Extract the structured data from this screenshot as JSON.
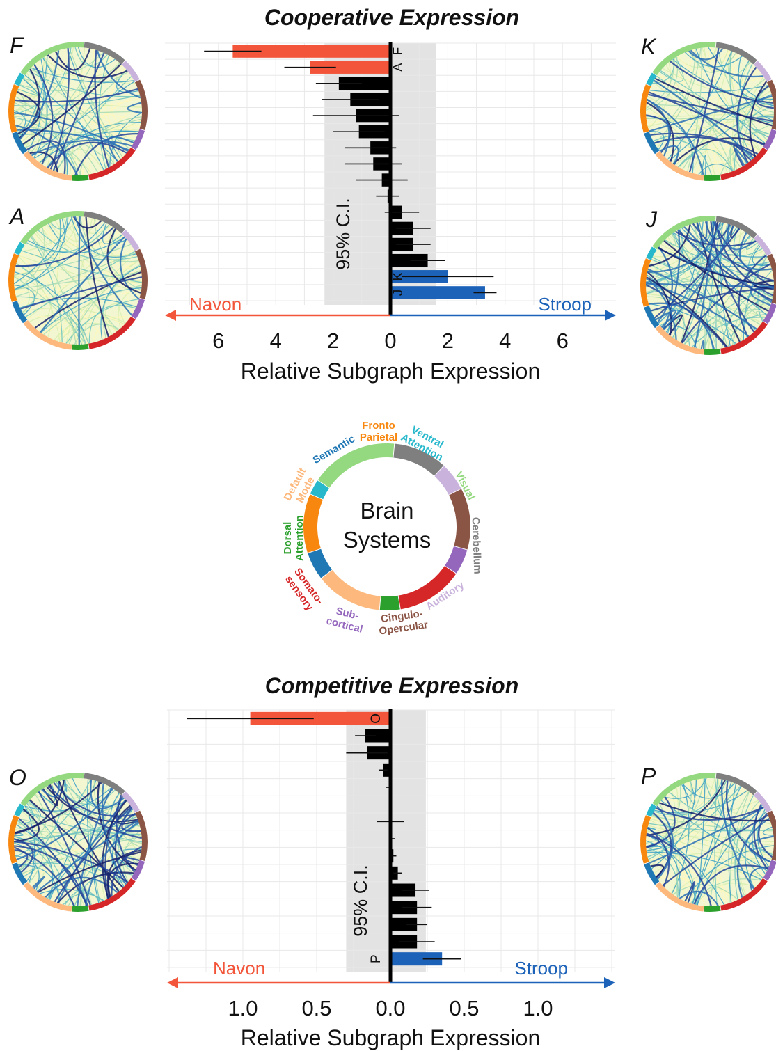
{
  "colors": {
    "navon": "#f2553a",
    "stroop": "#1c62b8",
    "neutral": "#000000",
    "ci_band": "#e3e3e3",
    "grid": "#e8e8e8"
  },
  "chart_data": [
    {
      "type": "bar",
      "orientation": "horizontal",
      "title": "Cooperative Expression",
      "xlabel": "Relative Subgraph Expression",
      "tick_labels": [
        "6",
        "4",
        "2",
        "0",
        "2",
        "4",
        "6"
      ],
      "xlim": [
        -8,
        8
      ],
      "ci_label": "95% C.I.",
      "ci_range": [
        -2.3,
        1.6
      ],
      "left_direction_label": "Navon",
      "right_direction_label": "Stroop",
      "grid": true,
      "values": [
        -5.5,
        -2.8,
        -1.8,
        -1.4,
        -1.2,
        -1.1,
        -0.7,
        -0.6,
        -0.3,
        -0.1,
        0.4,
        0.8,
        0.8,
        1.3,
        2.0,
        3.3
      ],
      "errors": [
        1.0,
        0.9,
        0.8,
        1.0,
        1.5,
        0.9,
        0.9,
        1.0,
        0.9,
        0.4,
        0.6,
        0.6,
        0.6,
        0.6,
        1.6,
        0.4
      ],
      "categories": [
        "F",
        "A",
        "",
        "",
        "",
        "",
        "",
        "",
        "",
        "",
        "",
        "",
        "",
        "",
        "K",
        "J"
      ]
    },
    {
      "type": "bar",
      "orientation": "horizontal",
      "title": "Competitive Expression",
      "xlabel": "Relative Subgraph Expression",
      "tick_labels": [
        "1.0",
        "0.5",
        "0.0",
        "0.5",
        "1.0"
      ],
      "xlim": [
        -1.5,
        1.5
      ],
      "ci_label": "95% C.I.",
      "ci_range": [
        -0.3,
        0.24
      ],
      "left_direction_label": "Navon",
      "right_direction_label": "Stroop",
      "grid": true,
      "values": [
        -0.95,
        -0.17,
        -0.16,
        -0.05,
        -0.01,
        0.0,
        0.0,
        0.01,
        0.02,
        0.05,
        0.17,
        0.18,
        0.18,
        0.18,
        0.35
      ],
      "errors": [
        0.43,
        0.07,
        0.14,
        0.03,
        0.02,
        0.0,
        0.09,
        0.02,
        0.02,
        0.03,
        0.09,
        0.1,
        0.07,
        0.12,
        0.13
      ],
      "categories": [
        "O",
        "",
        "",
        "",
        "",
        "",
        "",
        "",
        "",
        "",
        "",
        "",
        "",
        "",
        "P"
      ]
    }
  ],
  "panels": [
    {
      "label": "F",
      "style": "mixed"
    },
    {
      "label": "A",
      "style": "light"
    },
    {
      "label": "K",
      "style": "mixed"
    },
    {
      "label": "J",
      "style": "dense"
    },
    {
      "label": "O",
      "style": "dense"
    },
    {
      "label": "P",
      "style": "mixed"
    }
  ],
  "legend": {
    "center_line1": "Brain",
    "center_line2": "Systems",
    "systems": [
      {
        "name": "Fronto Parietal",
        "lines": [
          "Fronto",
          "Parietal"
        ],
        "color": "#f7870f"
      },
      {
        "name": "Ventral Attention",
        "lines": [
          "Ventral",
          "Attention"
        ],
        "color": "#27b8cc"
      },
      {
        "name": "Visual",
        "lines": [
          "Visual"
        ],
        "color": "#94d87f"
      },
      {
        "name": "Cerebellum",
        "lines": [
          "Cerebellum"
        ],
        "color": "#7f7f7f"
      },
      {
        "name": "Auditory",
        "lines": [
          "Auditory"
        ],
        "color": "#c9b3dc"
      },
      {
        "name": "Cingulo-Opercular",
        "lines": [
          "Cingulo-",
          "Opercular"
        ],
        "color": "#8b5546"
      },
      {
        "name": "Sub-cortical",
        "lines": [
          "Sub-",
          "cortical"
        ],
        "color": "#9467bd"
      },
      {
        "name": "Somato-sensory",
        "lines": [
          "Somato-",
          "sensory"
        ],
        "color": "#d62728"
      },
      {
        "name": "Dorsal Attention",
        "lines": [
          "Dorsal",
          "Attention"
        ],
        "color": "#2ca02c"
      },
      {
        "name": "Default Mode",
        "lines": [
          "Default",
          "Mode"
        ],
        "color": "#fdb97d"
      },
      {
        "name": "Semantic",
        "lines": [
          "Semantic"
        ],
        "color": "#1f77b4"
      }
    ]
  }
}
